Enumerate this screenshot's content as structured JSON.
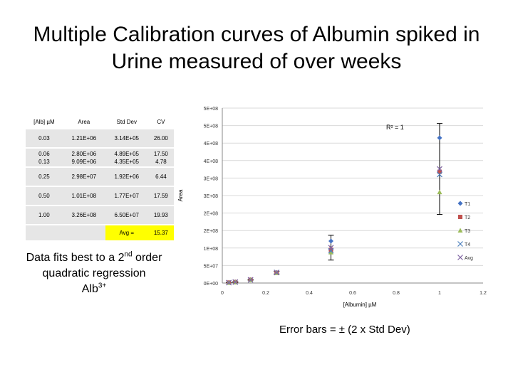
{
  "page": {
    "title_line1": "Multiple Calibration curves of Albumin spiked in",
    "title_line2": "Urine measured of over weeks",
    "note_line1": "Data fits best to a 2",
    "note_sup1": "nd",
    "note_line1b": " order",
    "note_line2": "quadratic regression",
    "note_line3": "Alb",
    "note_sup3": "3+",
    "error_note": "Error bars = ± (2 x Std Dev)"
  },
  "table": {
    "headers": [
      "[Alb] µM",
      "Area",
      "Std Dev",
      "CV"
    ],
    "rows": [
      [
        "0.03",
        "1.21E+06",
        "3.14E+05",
        "26.00"
      ],
      [
        "0.06\n0.13",
        "2.80E+06\n9.09E+06",
        "4.89E+05\n4.35E+05",
        "17.50\n4.78"
      ],
      [
        "0.25",
        "2.98E+07",
        "1.92E+06",
        "6.44"
      ],
      [
        "0.50",
        "1.01E+08",
        "1.77E+07",
        "17.59"
      ],
      [
        "1.00",
        "3.26E+08",
        "6.50E+07",
        "19.93"
      ]
    ],
    "avg_label": "Avg =",
    "avg_value": "15.37"
  },
  "chart_data": {
    "type": "scatter",
    "xlabel": "[Albumin] µM",
    "ylabel": "Area",
    "xlim": [
      0,
      1.2
    ],
    "ylim": [
      0,
      500000000
    ],
    "x_ticks": [
      "0",
      "0.2",
      "0.4",
      "0.6",
      "0.8",
      "1",
      "1.2"
    ],
    "y_ticks": [
      "0E+00",
      "5E+07",
      "1E+08",
      "2E+08",
      "2E+08",
      "3E+08",
      "3E+08",
      "4E+08",
      "4E+08",
      "5E+08",
      "5E+08"
    ],
    "annotation": "R² = 1",
    "x": [
      0.03,
      0.06,
      0.13,
      0.25,
      0.5,
      1.0
    ],
    "series": [
      {
        "name": "T1",
        "color": "#4472c4",
        "marker": "diamond",
        "values": [
          1200000,
          3000000,
          9500000,
          30000000,
          120000000,
          415000000
        ]
      },
      {
        "name": "T2",
        "color": "#c0504d",
        "marker": "square",
        "values": [
          1300000,
          2800000,
          9200000,
          29500000,
          95000000,
          318000000
        ]
      },
      {
        "name": "T3",
        "color": "#9bbb59",
        "marker": "triangle",
        "values": [
          1000000,
          2500000,
          8800000,
          29000000,
          88000000,
          260000000
        ]
      },
      {
        "name": "T4",
        "color": "#4f81bd",
        "marker": "x",
        "values": [
          1100000,
          2700000,
          9000000,
          30500000,
          92000000,
          310000000
        ]
      },
      {
        "name": "Avg",
        "color": "#8064a2",
        "marker": "x",
        "values": [
          1210000,
          2800000,
          9090000,
          29800000,
          101000000,
          326000000
        ]
      }
    ],
    "error_bars": {
      "series": "Avg",
      "plus_minus": [
        628000,
        978000,
        870000,
        3840000,
        35400000,
        130000000
      ]
    },
    "legend": "right"
  }
}
